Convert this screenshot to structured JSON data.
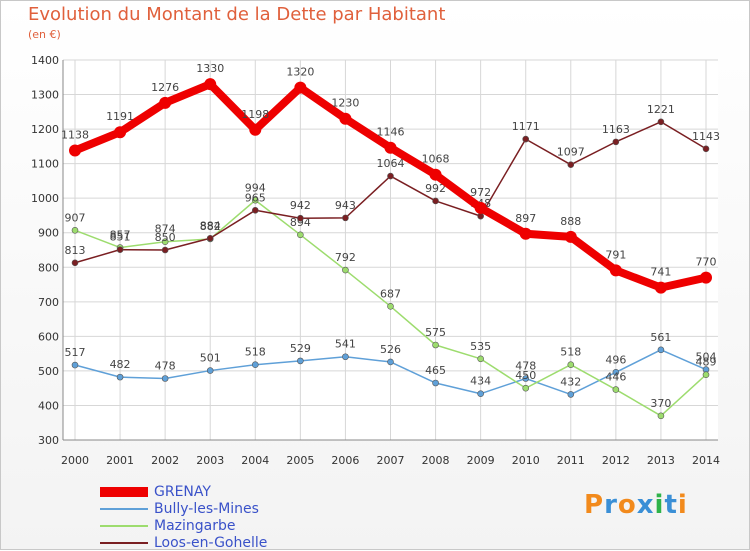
{
  "header": {
    "title": "Evolution du Montant de la Dette par Habitant",
    "unit": "(en €)"
  },
  "logo": {
    "text": "Proxiti"
  },
  "chart_data": {
    "type": "line",
    "title": "Evolution du Montant de la Dette par Habitant",
    "subtitle": "(en €)",
    "x": [
      "2000",
      "2001",
      "2002",
      "2003",
      "2004",
      "2005",
      "2006",
      "2007",
      "2008",
      "2009",
      "2010",
      "2011",
      "2012",
      "2013",
      "2014"
    ],
    "ylim": [
      300,
      1400
    ],
    "yticks": [
      300,
      400,
      500,
      600,
      700,
      800,
      900,
      1000,
      1100,
      1200,
      1300,
      1400
    ],
    "grid": true,
    "legend": "bottom-left",
    "series": [
      {
        "name": "GRENAY",
        "color": "#ee0000",
        "width": 8,
        "values": [
          1138,
          1191,
          1276,
          1330,
          1198,
          1320,
          1230,
          1146,
          1068,
          972,
          897,
          888,
          791,
          741,
          770
        ]
      },
      {
        "name": "Bully-les-Mines",
        "color": "#5fa0d8",
        "width": 1.5,
        "values": [
          517,
          482,
          478,
          501,
          518,
          529,
          541,
          526,
          465,
          434,
          478,
          432,
          496,
          561,
          504
        ]
      },
      {
        "name": "Mazingarbe",
        "color": "#9ddc6e",
        "width": 1.5,
        "values": [
          907,
          857,
          874,
          882,
          994,
          894,
          792,
          687,
          575,
          535,
          450,
          518,
          446,
          370,
          489
        ]
      },
      {
        "name": "Loos-en-Gohelle",
        "color": "#7a1f22",
        "width": 1.5,
        "values": [
          813,
          851,
          850,
          884,
          965,
          942,
          943,
          1064,
          992,
          948,
          1171,
          1097,
          1163,
          1221,
          1143
        ]
      }
    ]
  }
}
